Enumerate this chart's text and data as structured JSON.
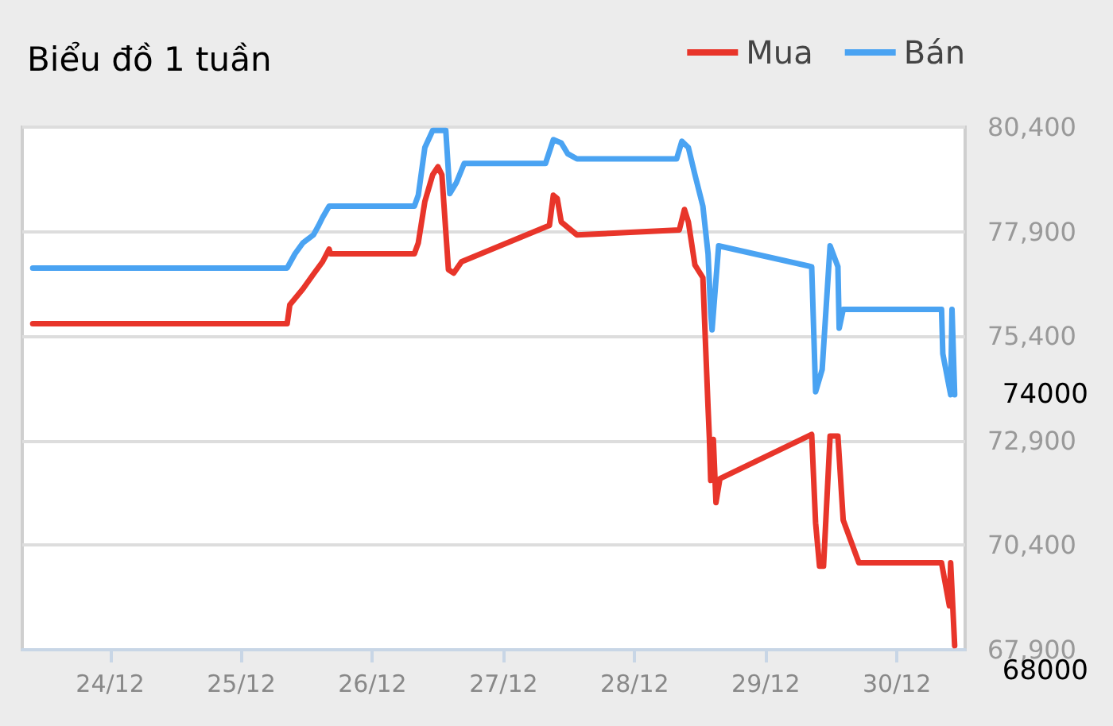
{
  "chart_data": {
    "type": "line",
    "title": "Biểu đồ 1 tuần",
    "series": [
      {
        "name": "Mua",
        "color": "#e8352a",
        "x": [
          "--12-23T09:50",
          "--12-25T08:24",
          "--12-25T08:53",
          "--12-25T11:17",
          "--12-25T13:12",
          "--12-25T14:53",
          "--12-25T16:05",
          "--12-25T16:19",
          "--12-26T07:41",
          "--12-26T08:24",
          "--12-26T09:36",
          "--12-26T11:02",
          "--12-26T12:00",
          "--12-26T12:43",
          "--12-26T13:55",
          "--12-26T14:53",
          "--12-26T16:19",
          "--12-27T08:24",
          "--12-27T09:07",
          "--12-27T09:50",
          "--12-27T10:34",
          "--12-27T13:26",
          "--12-28T08:10",
          "--12-28T09:07",
          "--12-28T09:50",
          "--12-28T11:02",
          "--12-28T12:29",
          "--12-28T13:26",
          "--12-28T13:41",
          "--12-28T13:55",
          "--12-28T14:24",
          "--12-28T14:53",
          "--12-28T15:36",
          "--12-29T08:24",
          "--12-29T09:07",
          "--12-29T09:50",
          "--12-29T10:34",
          "--12-29T11:46",
          "--12-29T13:12",
          "--12-29T14:10",
          "--12-29T17:02",
          "--12-30T08:10",
          "--12-30T09:36",
          "--12-30T09:50",
          "--12-30T10:34"
        ],
        "values": [
          75700,
          75700,
          76150,
          76530,
          76880,
          77180,
          77480,
          77370,
          77370,
          77630,
          78620,
          79260,
          79450,
          79260,
          76990,
          76910,
          77180,
          78050,
          78770,
          78690,
          78130,
          77820,
          77940,
          78430,
          78130,
          77100,
          76800,
          73690,
          72930,
          71950,
          72930,
          71420,
          71990,
          73050,
          70930,
          69900,
          69900,
          73010,
          73010,
          71000,
          69980,
          69980,
          68950,
          69980,
          68000
        ],
        "value_labels": [
          null,
          null,
          null,
          null,
          null,
          null,
          null,
          null,
          null,
          null,
          null,
          null,
          null,
          null,
          null,
          null,
          null,
          null,
          null,
          null,
          null,
          null,
          null,
          null,
          null,
          null,
          null,
          null,
          null,
          null,
          null,
          null,
          null,
          null,
          null,
          null,
          null,
          null,
          null,
          null,
          null,
          null,
          null,
          null,
          "68000"
        ]
      },
      {
        "name": "Bán",
        "color": "#4aa3f2",
        "x": [
          "--12-23T09:50",
          "--12-25T08:24",
          "--12-25T09:50",
          "--12-25T11:17",
          "--12-25T13:12",
          "--12-25T14:10",
          "--12-25T14:53",
          "--12-25T16:05",
          "--12-26T07:41",
          "--12-26T08:24",
          "--12-26T09:36",
          "--12-26T11:02",
          "--12-26T13:26",
          "--12-26T14:10",
          "--12-26T15:22",
          "--12-26T16:48",
          "--12-27T07:41",
          "--12-27T09:07",
          "--12-27T10:34",
          "--12-27T11:46",
          "--12-27T13:26",
          "--12-28T07:41",
          "--12-28T08:38",
          "--12-28T09:50",
          "--12-28T11:02",
          "--12-28T12:29",
          "--12-28T13:26",
          "--12-28T13:55",
          "--12-28T14:10",
          "--12-28T15:22",
          "--12-29T08:24",
          "--12-29T09:07",
          "--12-29T10:19",
          "--12-29T11:46",
          "--12-29T13:12",
          "--12-29T13:26",
          "--12-29T14:10",
          "--12-30T08:10",
          "--12-30T08:24",
          "--12-30T09:50",
          "--12-30T10:05",
          "--12-30T10:34"
        ],
        "values": [
          77030,
          77030,
          77370,
          77630,
          77820,
          78050,
          78240,
          78510,
          78510,
          78770,
          79910,
          80320,
          80320,
          78810,
          79070,
          79530,
          79530,
          80100,
          80020,
          79760,
          79640,
          79640,
          80060,
          79910,
          79260,
          78510,
          77370,
          75970,
          75550,
          77560,
          77060,
          74070,
          74600,
          77560,
          77060,
          75590,
          76040,
          76040,
          74980,
          74000,
          76040,
          74000
        ],
        "value_labels": [
          null,
          null,
          null,
          null,
          null,
          null,
          null,
          null,
          null,
          null,
          null,
          null,
          null,
          null,
          null,
          null,
          null,
          null,
          null,
          null,
          null,
          null,
          null,
          null,
          null,
          null,
          null,
          null,
          null,
          null,
          null,
          null,
          null,
          null,
          null,
          null,
          null,
          null,
          null,
          null,
          null,
          "74000"
        ]
      }
    ],
    "xlim": [
      "--12-23T07:55",
      "--12-30T12:29"
    ],
    "xticks": [
      {
        "value": "--12-24",
        "label": "24/12"
      },
      {
        "value": "--12-25",
        "label": "25/12"
      },
      {
        "value": "--12-26",
        "label": "26/12"
      },
      {
        "value": "--12-27",
        "label": "27/12"
      },
      {
        "value": "--12-28",
        "label": "28/12"
      },
      {
        "value": "--12-29",
        "label": "29/12"
      },
      {
        "value": "--12-30",
        "label": "30/12"
      }
    ],
    "ylim": [
      67900,
      80400
    ],
    "yticks": [
      {
        "value": 67900,
        "label": "67,900"
      },
      {
        "value": 70400,
        "label": "70,400"
      },
      {
        "value": 72900,
        "label": "72,900"
      },
      {
        "value": 75400,
        "label": "75,400"
      },
      {
        "value": 77900,
        "label": "77,900"
      },
      {
        "value": 80400,
        "label": "80,400"
      }
    ],
    "grid": "y",
    "legend": "top right",
    "marker": "none",
    "line_style": "solid"
  }
}
